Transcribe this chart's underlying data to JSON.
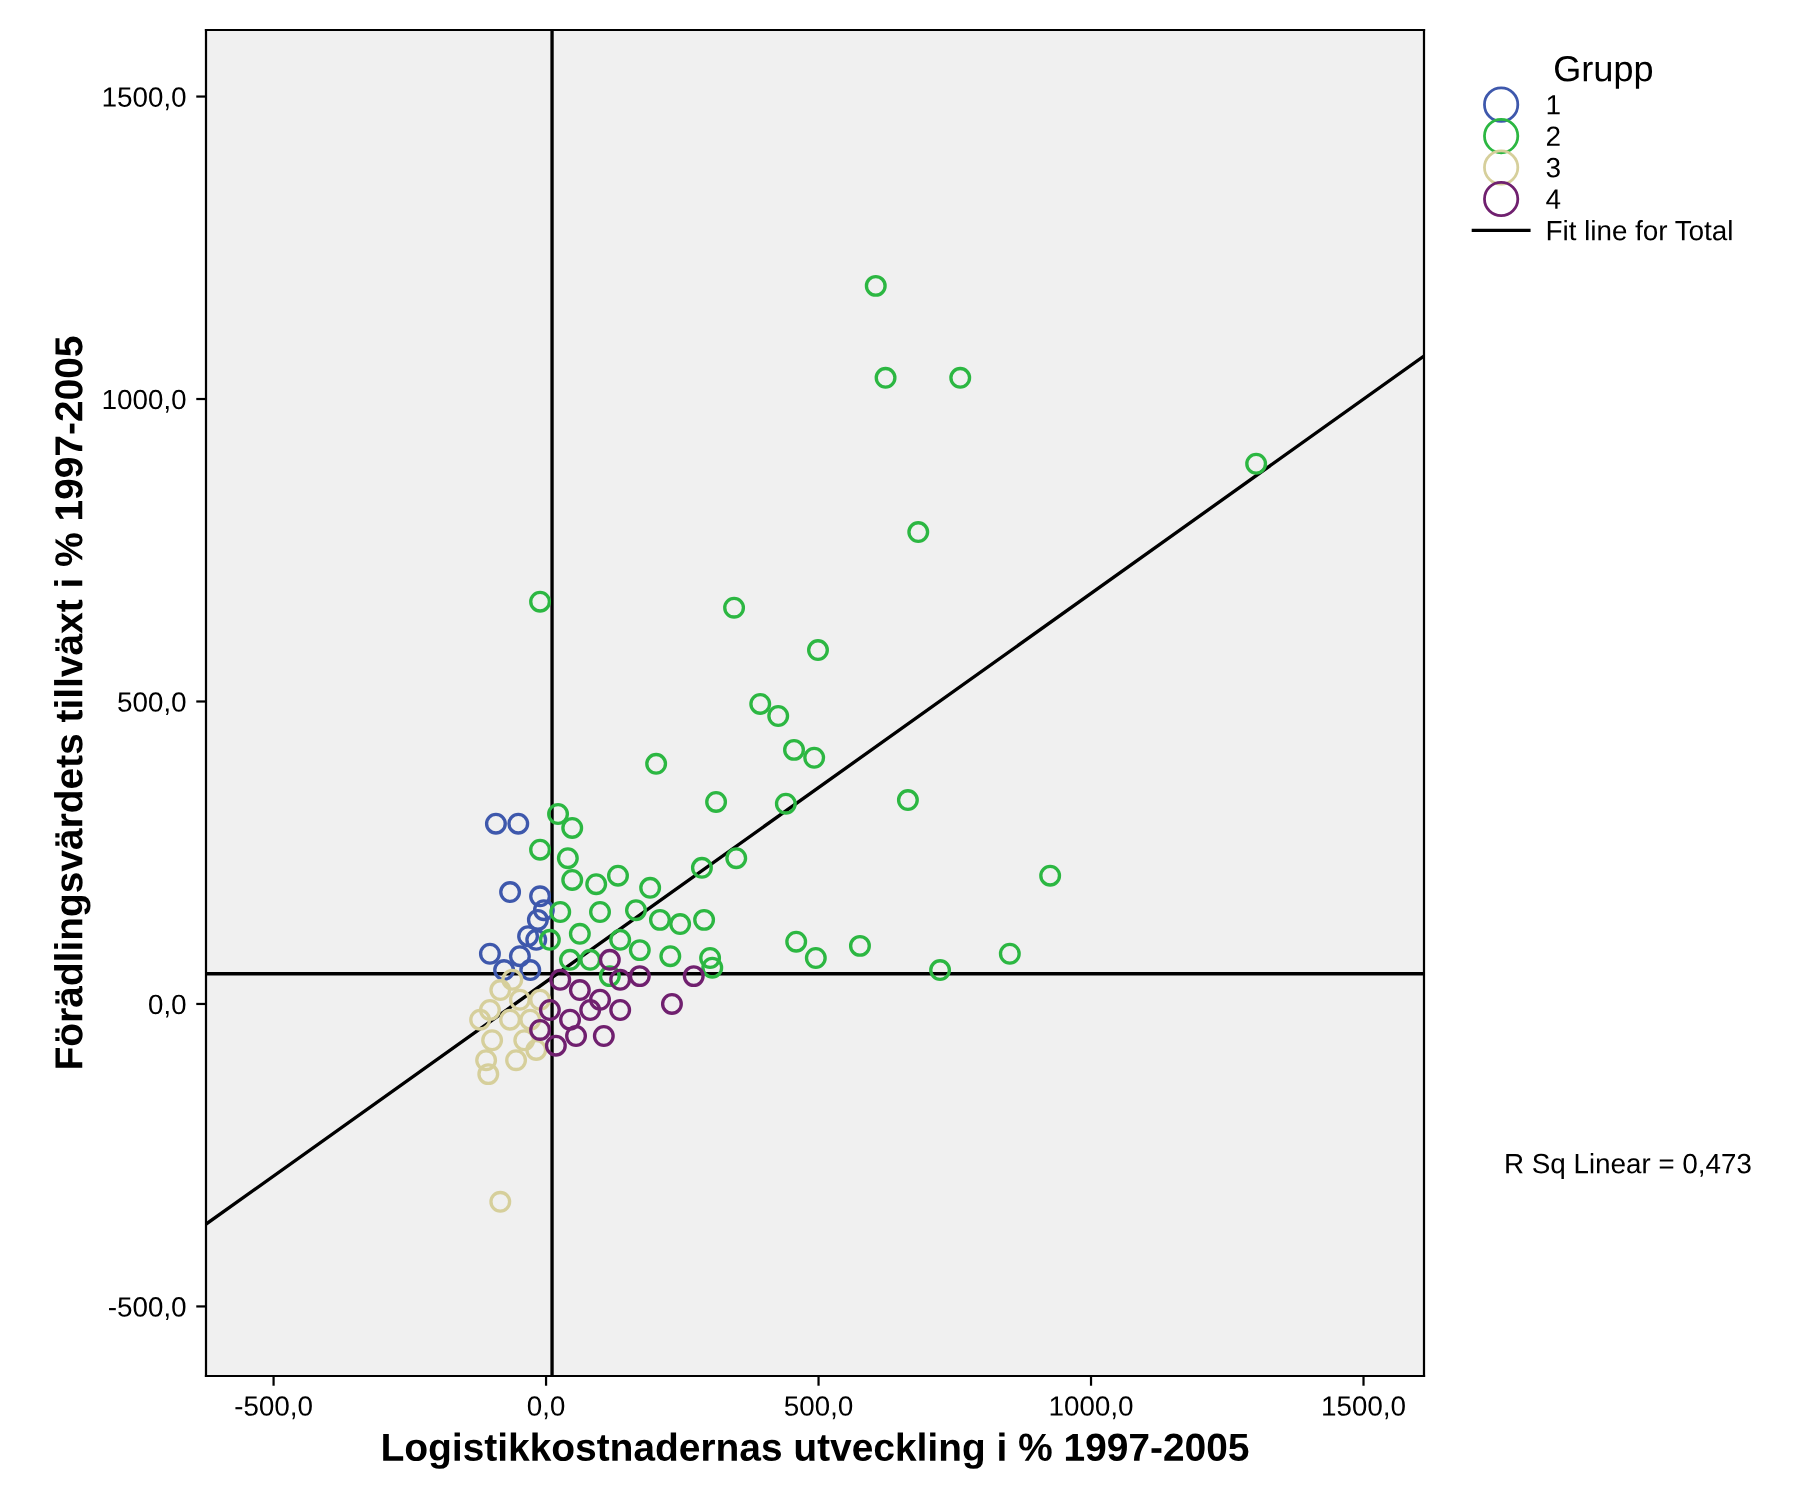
{
  "chart_data": {
    "type": "scatter",
    "xlabel": "Logistikkostnadernas utveckling i % 1997-2005",
    "ylabel": "Förädlingsvärdets tillväxt i % 1997-2005",
    "legend_title": "Grupp",
    "legend": "right",
    "marker": "circle",
    "grid": false,
    "xlim": [
      -624,
      1611
    ],
    "ylim": [
      -615,
      1610
    ],
    "xticks": [
      {
        "value": -500,
        "label": "-500,0"
      },
      {
        "value": 0,
        "label": "0,0"
      },
      {
        "value": 500,
        "label": "500,0"
      },
      {
        "value": 1000,
        "label": "1000,0"
      },
      {
        "value": 1500,
        "label": "1500,0"
      }
    ],
    "yticks": [
      {
        "value": -500,
        "label": "-500,0"
      },
      {
        "value": 0,
        "label": "0,0"
      },
      {
        "value": 500,
        "label": "500,0"
      },
      {
        "value": 1000,
        "label": "1000,0"
      },
      {
        "value": 1500,
        "label": "1500,0"
      }
    ],
    "ref_lines": [
      {
        "axis": "x",
        "value": 11,
        "color": "#000000"
      },
      {
        "axis": "y",
        "value": 50,
        "color": "#000000"
      }
    ],
    "annotations": [
      "R Sq Linear = 0,473"
    ],
    "series": [
      {
        "name": "1",
        "color": "#3e58ac",
        "x": [
          -92,
          -51,
          -66,
          -4,
          -15,
          -18,
          -103,
          -48,
          -29,
          -77,
          -33,
          -11
        ],
        "values": [
          298,
          298,
          185,
          155,
          139,
          106,
          83,
          79,
          56,
          56,
          112,
          178
        ]
      },
      {
        "name": "2",
        "color": "#2cb742",
        "x": [
          605,
          623,
          760,
          1303,
          683,
          -11,
          345,
          499,
          393,
          426,
          455,
          492,
          202,
          312,
          440,
          664,
          925,
          349,
          286,
          22,
          48,
          -11,
          40,
          48,
          92,
          132,
          191,
          459,
          576,
          495,
          723,
          851,
          301,
          305,
          99,
          165,
          209,
          246,
          290,
          136,
          62,
          81,
          172,
          228,
          44,
          117,
          7,
          26
        ],
        "values": [
          1187,
          1035,
          1035,
          893,
          780,
          665,
          655,
          585,
          496,
          476,
          420,
          407,
          397,
          334,
          331,
          337,
          212,
          241,
          225,
          314,
          291,
          255,
          241,
          205,
          198,
          212,
          192,
          103,
          96,
          76,
          56,
          83,
          76,
          60,
          152,
          155,
          139,
          132,
          139,
          106,
          116,
          73,
          89,
          79,
          73,
          46,
          106,
          152
        ]
      },
      {
        "name": "3",
        "color": "#d6cf9b",
        "x": [
          -84,
          -106,
          -110,
          -99,
          -103,
          -84,
          -66,
          -48,
          -40,
          -55,
          -18,
          -29,
          -11,
          -121,
          -62
        ],
        "values": [
          -327,
          -116,
          -93,
          -60,
          -10,
          23,
          -26,
          7,
          -60,
          -93,
          -76,
          -26,
          7,
          -26,
          40
        ]
      },
      {
        "name": "4",
        "color": "#70206f",
        "x": [
          26,
          62,
          99,
          136,
          172,
          271,
          231,
          106,
          18,
          44,
          81,
          7,
          136,
          -11,
          117,
          55
        ],
        "values": [
          40,
          23,
          7,
          40,
          46,
          46,
          0,
          -53,
          -69,
          -26,
          -10,
          -10,
          -10,
          -43,
          73,
          -53
        ]
      },
      {
        "name": "Fit line for Total",
        "type": "line",
        "color": "#000000",
        "marker": "none",
        "line_style": "solid",
        "x": [
          -624,
          1611
        ],
        "values": [
          -364,
          1071
        ]
      }
    ]
  }
}
